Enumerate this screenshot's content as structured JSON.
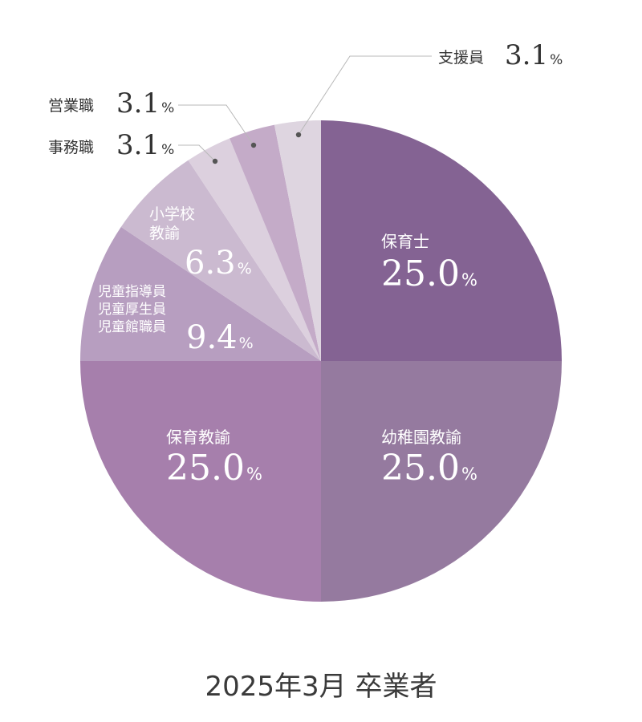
{
  "chart_data": {
    "type": "pie",
    "caption": "2025年3月 卒業者",
    "unit": "%",
    "slices": [
      {
        "label": [
          "保育士"
        ],
        "value": 25.0,
        "value_text": "25.0",
        "color": "#846393",
        "label_color": "#ffffff"
      },
      {
        "label": [
          "幼稚園教諭"
        ],
        "value": 25.0,
        "value_text": "25.0",
        "color": "#957a9f",
        "label_color": "#ffffff"
      },
      {
        "label": [
          "保育教諭"
        ],
        "value": 25.0,
        "value_text": "25.0",
        "color": "#a67fac",
        "label_color": "#ffffff"
      },
      {
        "label": [
          "児童指導員",
          "児童厚生員",
          "児童館職員"
        ],
        "value": 9.4,
        "value_text": "9.4",
        "color": "#b79ec0",
        "label_color": "#ffffff"
      },
      {
        "label": [
          "小学校",
          "教諭"
        ],
        "value": 6.3,
        "value_text": "6.3",
        "color": "#cbbad0",
        "label_color": "#ffffff"
      },
      {
        "label": [
          "事務職"
        ],
        "value": 3.1,
        "value_text": "3.1",
        "color": "#dcd0de",
        "label_color": "#333333"
      },
      {
        "label": [
          "営業職"
        ],
        "value": 3.1,
        "value_text": "3.1",
        "color": "#c4abc8",
        "label_color": "#333333"
      },
      {
        "label": [
          "支援員"
        ],
        "value": 3.1,
        "value_text": "3.1",
        "color": "#ded5e0",
        "label_color": "#333333"
      }
    ]
  }
}
